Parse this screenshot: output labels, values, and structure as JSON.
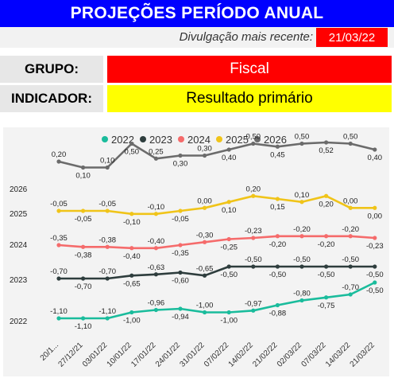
{
  "header": {
    "title": "PROJEÇÕES PERÍODO ANUAL"
  },
  "release": {
    "label": "Divulgação mais recente:",
    "date": "21/03/22"
  },
  "fields": {
    "group_label": "GRUPO:",
    "group_value": "Fiscal",
    "indicator_label": "INDICADOR:",
    "indicator_value": "Resultado primário"
  },
  "colors": {
    "title_bg": "#0000ff",
    "date_bg": "#ff0000",
    "group_bg": "#ff0000",
    "indicator_bg": "#ffff00"
  },
  "chart_data": {
    "type": "line",
    "categories": [
      "20/1...",
      "27/12/21",
      "03/01/22",
      "10/01/22",
      "17/01/22",
      "24/01/22",
      "31/01/22",
      "07/02/22",
      "14/02/22",
      "21/02/22",
      "02/03/22",
      "07/03/22",
      "14/03/22",
      "21/03/22"
    ],
    "series": [
      {
        "name": "2022",
        "color": "#1abc9c",
        "values": [
          -1.1,
          -1.1,
          -1.1,
          -1.0,
          -0.96,
          -0.94,
          -1.0,
          -1.0,
          -0.97,
          -0.88,
          -0.8,
          -0.75,
          -0.7,
          -0.5
        ],
        "labels": [
          "-1,10",
          "-1,10",
          "-1,10",
          "-1,00",
          "-0,96",
          "-0,94",
          "-1,00",
          "-1,00",
          "-0,97",
          "-0,88",
          "-0,80",
          "-0,75",
          "-0,70",
          "-0,50"
        ]
      },
      {
        "name": "2023",
        "color": "#2e3d3d",
        "values": [
          -0.7,
          -0.7,
          -0.7,
          -0.65,
          -0.63,
          -0.6,
          -0.65,
          -0.5,
          -0.5,
          -0.5,
          -0.5,
          -0.5,
          -0.5,
          -0.5
        ],
        "labels": [
          "-0,70",
          "-0,70",
          "-0,70",
          "-0,65",
          "-0,63",
          "-0,60",
          "-0,65",
          "-0,50",
          "-0,50",
          "-0,50",
          "-0,50",
          "-0,50",
          "-0,50",
          "-0,50"
        ]
      },
      {
        "name": "2024",
        "color": "#f56b6b",
        "values": [
          -0.35,
          -0.38,
          -0.38,
          -0.4,
          -0.4,
          -0.35,
          -0.3,
          -0.25,
          -0.23,
          -0.2,
          -0.2,
          -0.2,
          -0.2,
          -0.23
        ],
        "labels": [
          "-0,35",
          "-0,38",
          "-0,38",
          "-0,40",
          "-0,40",
          "-0,35",
          "-0,30",
          "-0,25",
          "-0,23",
          "-0,20",
          "-0,20",
          "-0,20",
          "-0,20",
          "-0,23"
        ]
      },
      {
        "name": "2025",
        "color": "#f0c419",
        "values": [
          -0.05,
          -0.05,
          -0.05,
          -0.1,
          -0.1,
          -0.05,
          0.0,
          0.1,
          0.2,
          0.15,
          0.1,
          0.2,
          0.0,
          0.0
        ],
        "labels": [
          "-0,05",
          "-0,05",
          "-0,05",
          "-0,10",
          "-0,10",
          "-0,05",
          "0,00",
          "0,10",
          "0,20",
          "0,15",
          "0,10",
          "0,20",
          "0,00",
          "0,00"
        ]
      },
      {
        "name": "2026",
        "color": "#6b6b6b",
        "values": [
          0.2,
          0.1,
          0.1,
          0.5,
          0.25,
          0.3,
          0.3,
          0.4,
          0.5,
          0.45,
          0.5,
          0.52,
          0.5,
          0.4
        ],
        "labels": [
          "0,20",
          "0,10",
          "0,10",
          "0,50",
          "0,25",
          "0,30",
          "0,30",
          "0,40",
          "0,50",
          "0,45",
          "0,50",
          "0,52",
          "0,50",
          "0,40"
        ]
      }
    ],
    "row_labels": [
      "2026",
      "2025",
      "2024",
      "2023",
      "2022"
    ],
    "legend_position": "top",
    "grid": false
  }
}
